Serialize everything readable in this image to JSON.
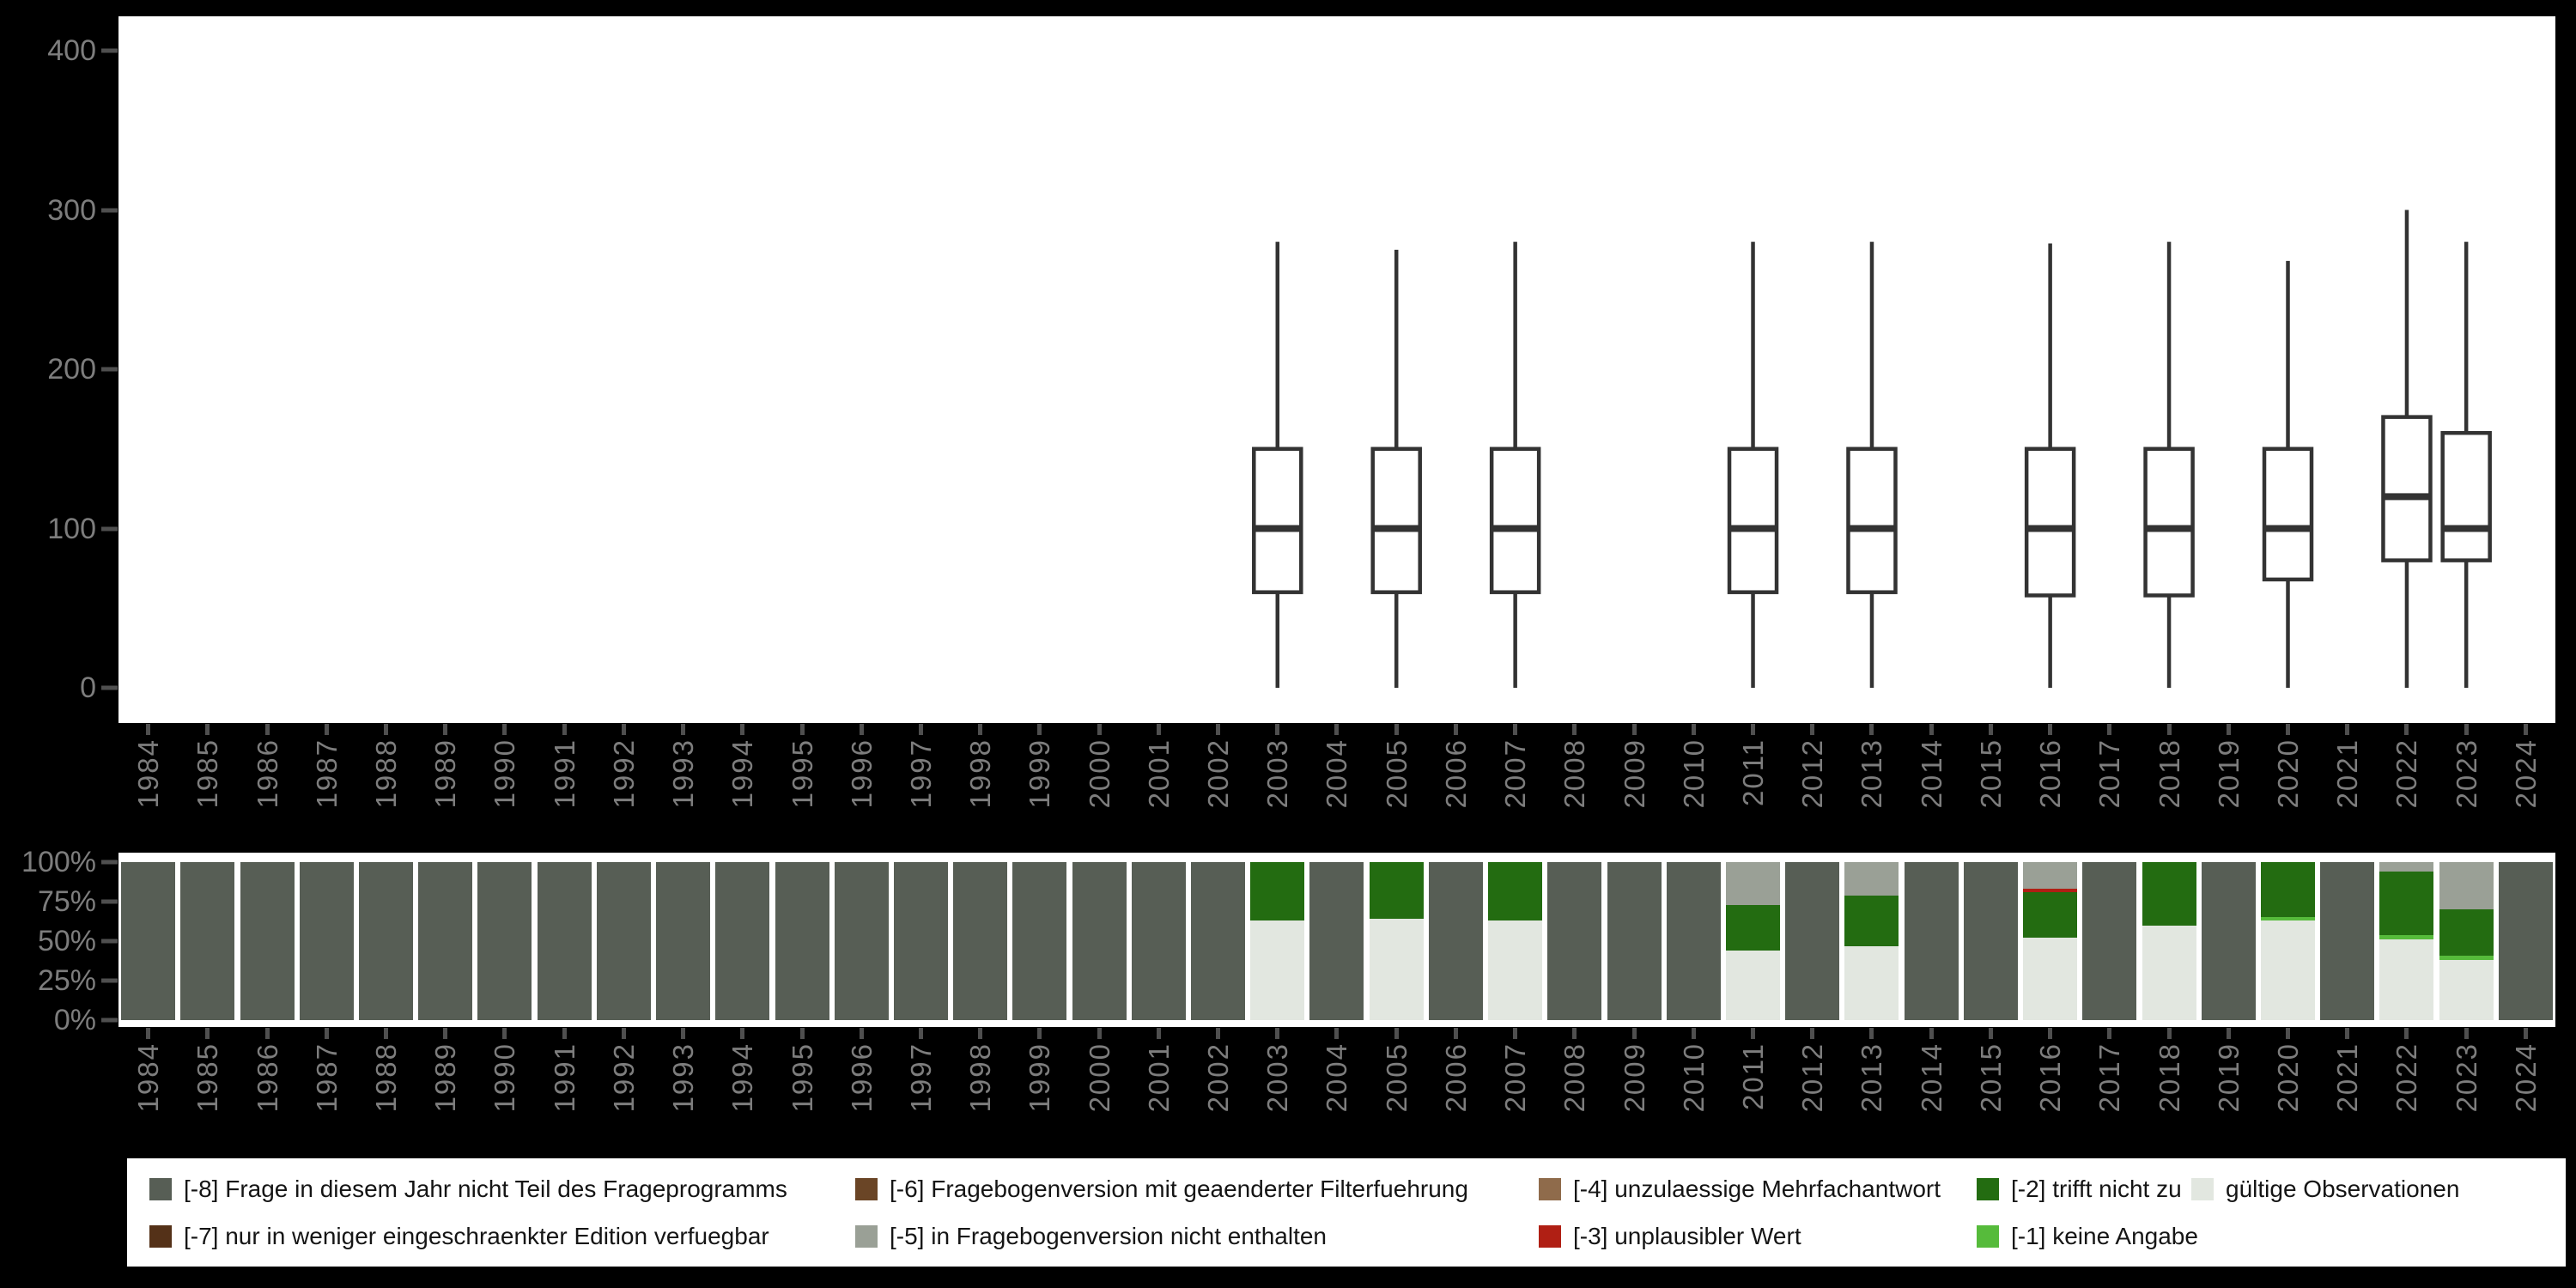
{
  "colors": {
    "background": "#000000",
    "plot_background": "#ffffff",
    "box_stroke": "#333333",
    "axis_tick": "#4f4f4f",
    "axis_label": "#7d7d7d",
    "legend_text": "#151515",
    "categories": {
      "-8": "#575e55",
      "-7": "#543118",
      "-6": "#6a4526",
      "-5": "#9aa096",
      "-4": "#8f6b4b",
      "-3": "#b01f14",
      "-2": "#236c11",
      "-1": "#56bb3b",
      "valid": "#e2e7e0"
    }
  },
  "legend": {
    "entries": [
      {
        "key": "-8",
        "label": "[-8] Frage in diesem Jahr nicht Teil des Frageprogramms",
        "row": 1,
        "col": 1
      },
      {
        "key": "-7",
        "label": "[-7] nur in weniger eingeschraenkter Edition verfuegbar",
        "row": 2,
        "col": 1
      },
      {
        "key": "-6",
        "label": "[-6] Fragebogenversion mit geaenderter Filterfuehrung",
        "row": 1,
        "col": 2
      },
      {
        "key": "-5",
        "label": "[-5] in Fragebogenversion nicht enthalten",
        "row": 2,
        "col": 2
      },
      {
        "key": "-4",
        "label": "[-4] unzulaessige Mehrfachantwort",
        "row": 1,
        "col": 3
      },
      {
        "key": "-3",
        "label": "[-3] unplausibler Wert",
        "row": 2,
        "col": 3
      },
      {
        "key": "-2",
        "label": "[-2] trifft nicht zu",
        "row": 1,
        "col": 4
      },
      {
        "key": "-1",
        "label": "[-1] keine Angabe",
        "row": 2,
        "col": 4
      },
      {
        "key": "valid",
        "label": "gültige Observationen",
        "row": 1,
        "col": 5
      }
    ]
  },
  "chart_data": [
    {
      "type": "boxplot",
      "ytick_labels": [
        "400",
        "300",
        "200",
        "100",
        "0"
      ],
      "ytick_values": [
        400,
        300,
        200,
        100,
        0
      ],
      "ylim": [
        -22,
        422
      ],
      "grid": false,
      "categories": [
        "1984",
        "1985",
        "1986",
        "1987",
        "1988",
        "1989",
        "1990",
        "1991",
        "1992",
        "1993",
        "1994",
        "1995",
        "1996",
        "1997",
        "1998",
        "1999",
        "2000",
        "2001",
        "2002",
        "2003",
        "2004",
        "2005",
        "2006",
        "2007",
        "2008",
        "2009",
        "2010",
        "2011",
        "2012",
        "2013",
        "2014",
        "2015",
        "2016",
        "2017",
        "2018",
        "2019",
        "2020",
        "2021",
        "2022",
        "2023",
        "2024"
      ],
      "boxes": [
        {
          "year": "2003",
          "low": 0,
          "q1": 60,
          "median": 100,
          "q3": 150,
          "high": 280
        },
        {
          "year": "2005",
          "low": 0,
          "q1": 60,
          "median": 100,
          "q3": 150,
          "high": 275
        },
        {
          "year": "2007",
          "low": 0,
          "q1": 60,
          "median": 100,
          "q3": 150,
          "high": 280
        },
        {
          "year": "2011",
          "low": 0,
          "q1": 60,
          "median": 100,
          "q3": 150,
          "high": 280
        },
        {
          "year": "2013",
          "low": 0,
          "q1": 60,
          "median": 100,
          "q3": 150,
          "high": 280
        },
        {
          "year": "2016",
          "low": 0,
          "q1": 58,
          "median": 100,
          "q3": 150,
          "high": 279
        },
        {
          "year": "2018",
          "low": 0,
          "q1": 58,
          "median": 100,
          "q3": 150,
          "high": 280
        },
        {
          "year": "2020",
          "low": 0,
          "q1": 68,
          "median": 100,
          "q3": 150,
          "high": 268
        },
        {
          "year": "2022",
          "low": 0,
          "q1": 80,
          "median": 120,
          "q3": 170,
          "high": 300
        },
        {
          "year": "2023",
          "low": 0,
          "q1": 80,
          "median": 100,
          "q3": 160,
          "high": 280
        }
      ]
    },
    {
      "type": "bar",
      "stacked": true,
      "unit": "percent",
      "ytick_labels": [
        "100%",
        "75%",
        "50%",
        "25%",
        "0%"
      ],
      "ytick_values": [
        100,
        75,
        50,
        25,
        0
      ],
      "ylim": [
        0,
        100
      ],
      "grid": false,
      "categories": [
        "1984",
        "1985",
        "1986",
        "1987",
        "1988",
        "1989",
        "1990",
        "1991",
        "1992",
        "1993",
        "1994",
        "1995",
        "1996",
        "1997",
        "1998",
        "1999",
        "2000",
        "2001",
        "2002",
        "2003",
        "2004",
        "2005",
        "2006",
        "2007",
        "2008",
        "2009",
        "2010",
        "2011",
        "2012",
        "2013",
        "2014",
        "2015",
        "2016",
        "2017",
        "2018",
        "2019",
        "2020",
        "2021",
        "2022",
        "2023",
        "2024"
      ],
      "bars": [
        {
          "year": "1984",
          "segments": [
            [
              "-8",
              100
            ]
          ]
        },
        {
          "year": "1985",
          "segments": [
            [
              "-8",
              100
            ]
          ]
        },
        {
          "year": "1986",
          "segments": [
            [
              "-8",
              100
            ]
          ]
        },
        {
          "year": "1987",
          "segments": [
            [
              "-8",
              100
            ]
          ]
        },
        {
          "year": "1988",
          "segments": [
            [
              "-8",
              100
            ]
          ]
        },
        {
          "year": "1989",
          "segments": [
            [
              "-8",
              100
            ]
          ]
        },
        {
          "year": "1990",
          "segments": [
            [
              "-8",
              100
            ]
          ]
        },
        {
          "year": "1991",
          "segments": [
            [
              "-8",
              100
            ]
          ]
        },
        {
          "year": "1992",
          "segments": [
            [
              "-8",
              100
            ]
          ]
        },
        {
          "year": "1993",
          "segments": [
            [
              "-8",
              100
            ]
          ]
        },
        {
          "year": "1994",
          "segments": [
            [
              "-8",
              100
            ]
          ]
        },
        {
          "year": "1995",
          "segments": [
            [
              "-8",
              100
            ]
          ]
        },
        {
          "year": "1996",
          "segments": [
            [
              "-8",
              100
            ]
          ]
        },
        {
          "year": "1997",
          "segments": [
            [
              "-8",
              100
            ]
          ]
        },
        {
          "year": "1998",
          "segments": [
            [
              "-8",
              100
            ]
          ]
        },
        {
          "year": "1999",
          "segments": [
            [
              "-8",
              100
            ]
          ]
        },
        {
          "year": "2000",
          "segments": [
            [
              "-8",
              100
            ]
          ]
        },
        {
          "year": "2001",
          "segments": [
            [
              "-8",
              100
            ]
          ]
        },
        {
          "year": "2002",
          "segments": [
            [
              "-8",
              100
            ]
          ]
        },
        {
          "year": "2003",
          "segments": [
            [
              "-2",
              37
            ],
            [
              "valid",
              63
            ]
          ]
        },
        {
          "year": "2004",
          "segments": [
            [
              "-8",
              100
            ]
          ]
        },
        {
          "year": "2005",
          "segments": [
            [
              "-2",
              36
            ],
            [
              "valid",
              64
            ]
          ]
        },
        {
          "year": "2006",
          "segments": [
            [
              "-8",
              100
            ]
          ]
        },
        {
          "year": "2007",
          "segments": [
            [
              "-2",
              37
            ],
            [
              "valid",
              63
            ]
          ]
        },
        {
          "year": "2008",
          "segments": [
            [
              "-8",
              100
            ]
          ]
        },
        {
          "year": "2009",
          "segments": [
            [
              "-8",
              100
            ]
          ]
        },
        {
          "year": "2010",
          "segments": [
            [
              "-8",
              100
            ]
          ]
        },
        {
          "year": "2011",
          "segments": [
            [
              "-5",
              27
            ],
            [
              "-2",
              29
            ],
            [
              "valid",
              44
            ]
          ]
        },
        {
          "year": "2012",
          "segments": [
            [
              "-8",
              100
            ]
          ]
        },
        {
          "year": "2013",
          "segments": [
            [
              "-5",
              21
            ],
            [
              "-2",
              32
            ],
            [
              "valid",
              47
            ]
          ]
        },
        {
          "year": "2014",
          "segments": [
            [
              "-8",
              100
            ]
          ]
        },
        {
          "year": "2015",
          "segments": [
            [
              "-8",
              100
            ]
          ]
        },
        {
          "year": "2016",
          "segments": [
            [
              "-5",
              17
            ],
            [
              "-3",
              2
            ],
            [
              "-2",
              29
            ],
            [
              "valid",
              52
            ]
          ]
        },
        {
          "year": "2017",
          "segments": [
            [
              "-8",
              100
            ]
          ]
        },
        {
          "year": "2018",
          "segments": [
            [
              "-2",
              40
            ],
            [
              "valid",
              60
            ]
          ]
        },
        {
          "year": "2019",
          "segments": [
            [
              "-8",
              100
            ]
          ]
        },
        {
          "year": "2020",
          "segments": [
            [
              "-2",
              35
            ],
            [
              "-1",
              2
            ],
            [
              "valid",
              63
            ]
          ]
        },
        {
          "year": "2021",
          "segments": [
            [
              "-8",
              100
            ]
          ]
        },
        {
          "year": "2022",
          "segments": [
            [
              "-5",
              6
            ],
            [
              "-2",
              40
            ],
            [
              "-1",
              3
            ],
            [
              "valid",
              51
            ]
          ]
        },
        {
          "year": "2023",
          "segments": [
            [
              "-5",
              30
            ],
            [
              "-2",
              29
            ],
            [
              "-1",
              3
            ],
            [
              "valid",
              38
            ]
          ]
        },
        {
          "year": "2024",
          "segments": [
            [
              "-8",
              100
            ]
          ]
        }
      ]
    }
  ]
}
